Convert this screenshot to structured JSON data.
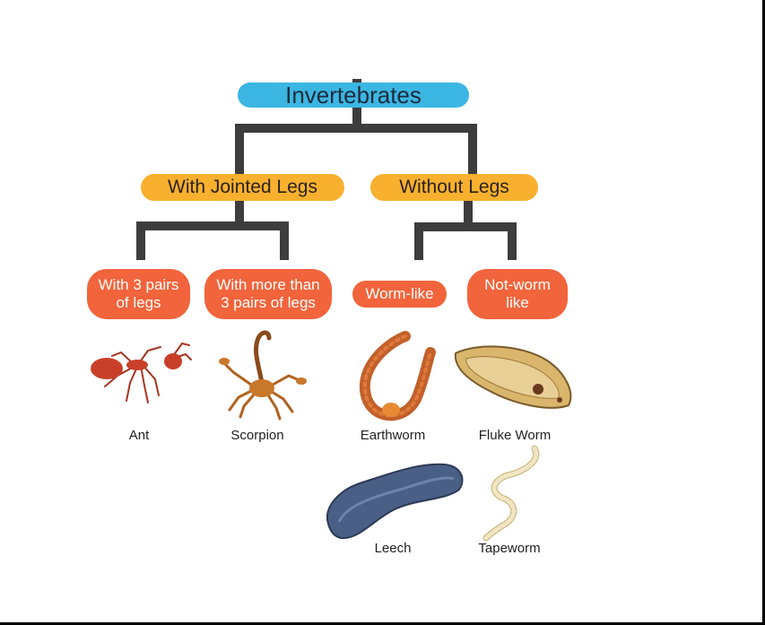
{
  "root": {
    "label": "Invertebrates",
    "color": "#3bb6e3"
  },
  "branches": [
    {
      "label": "With Jointed Legs",
      "color": "#f8b02e",
      "children": [
        {
          "label_line1": "With 3 pairs",
          "label_line2": "of legs",
          "animal": "Ant",
          "icon": "ant-icon"
        },
        {
          "label_line1": "With more than",
          "label_line2": "3 pairs of legs",
          "animal": "Scorpion",
          "icon": "scorpion-icon"
        }
      ]
    },
    {
      "label": "Without Legs",
      "color": "#f8b02e",
      "children": [
        {
          "label_line1": "Worm-like",
          "animals": [
            "Earthworm",
            "Leech"
          ],
          "icons": [
            "earthworm-icon",
            "leech-icon"
          ]
        },
        {
          "label_line1": "Not-worm",
          "label_line2": "like",
          "animals": [
            "Fluke Worm",
            "Tapeworm"
          ],
          "icons": [
            "fluke-worm-icon",
            "tapeworm-icon"
          ]
        }
      ]
    }
  ],
  "category_color": "#f2643b",
  "connector_color": "#3d3d3d"
}
